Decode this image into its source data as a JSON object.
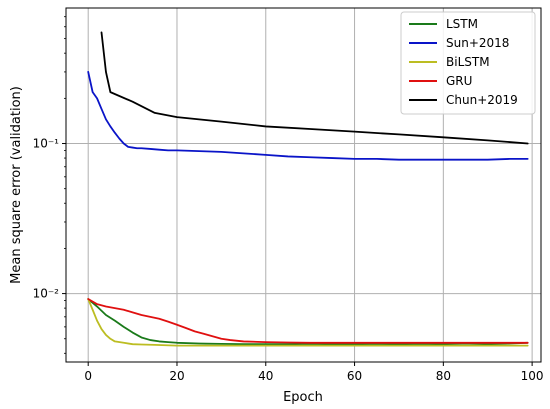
{
  "chart_data": {
    "type": "line",
    "title": "",
    "xlabel": "Epoch",
    "ylabel": "Mean square error (validation)",
    "xlim": [
      -5,
      102
    ],
    "ylim": [
      0.0035,
      0.8
    ],
    "yscale": "log",
    "grid": true,
    "legend_position": "top-right",
    "x_ticks": [
      0,
      20,
      40,
      60,
      80,
      100
    ],
    "x_tick_labels": [
      "0",
      "20",
      "40",
      "60",
      "80",
      "100"
    ],
    "y_ticks": [
      0.01,
      0.1
    ],
    "y_tick_labels": [
      "10⁻²",
      "10⁻¹"
    ],
    "series": [
      {
        "name": "LSTM",
        "color": "#1a7a1a",
        "x": [
          0,
          2,
          4,
          6,
          8,
          10,
          12,
          14,
          16,
          18,
          20,
          25,
          30,
          35,
          40,
          45,
          50,
          55,
          60,
          65,
          70,
          75,
          80,
          85,
          90,
          95,
          99
        ],
        "y": [
          0.0092,
          0.0082,
          0.0072,
          0.0066,
          0.006,
          0.0055,
          0.0051,
          0.0049,
          0.0048,
          0.00475,
          0.0047,
          0.00465,
          0.00462,
          0.0046,
          0.0046,
          0.0046,
          0.00462,
          0.0046,
          0.0046,
          0.00462,
          0.0046,
          0.00462,
          0.0046,
          0.00465,
          0.0046,
          0.00465,
          0.0047
        ]
      },
      {
        "name": "Sun+2018",
        "color": "#0a14c8",
        "x": [
          0,
          1,
          2,
          3,
          4,
          5,
          6,
          7,
          8,
          9,
          10,
          11,
          12,
          14,
          16,
          18,
          20,
          25,
          30,
          35,
          40,
          45,
          50,
          55,
          60,
          65,
          70,
          75,
          80,
          85,
          90,
          95,
          99
        ],
        "y": [
          0.3,
          0.22,
          0.2,
          0.17,
          0.145,
          0.13,
          0.118,
          0.108,
          0.1,
          0.095,
          0.094,
          0.093,
          0.093,
          0.092,
          0.091,
          0.09,
          0.09,
          0.089,
          0.088,
          0.086,
          0.084,
          0.082,
          0.081,
          0.08,
          0.079,
          0.079,
          0.078,
          0.078,
          0.078,
          0.078,
          0.078,
          0.079,
          0.079
        ]
      },
      {
        "name": "BiLSTM",
        "color": "#bcbd22",
        "x": [
          0,
          1,
          2,
          3,
          4,
          5,
          6,
          8,
          10,
          12,
          15,
          20,
          25,
          30,
          35,
          40,
          45,
          50,
          55,
          60,
          65,
          70,
          75,
          80,
          85,
          90,
          95,
          99
        ],
        "y": [
          0.0092,
          0.0078,
          0.0066,
          0.0058,
          0.0053,
          0.005,
          0.0048,
          0.0047,
          0.0046,
          0.00458,
          0.00455,
          0.0045,
          0.0045,
          0.0045,
          0.0045,
          0.0045,
          0.0045,
          0.0045,
          0.0045,
          0.0045,
          0.0045,
          0.0045,
          0.0045,
          0.0045,
          0.0045,
          0.0045,
          0.0045,
          0.0045
        ]
      },
      {
        "name": "GRU",
        "color": "#e01010",
        "x": [
          0,
          2,
          4,
          6,
          8,
          10,
          12,
          14,
          16,
          18,
          20,
          22,
          24,
          26,
          28,
          30,
          32,
          35,
          40,
          45,
          50,
          55,
          60,
          65,
          70,
          75,
          80,
          85,
          90,
          95,
          99
        ],
        "y": [
          0.0092,
          0.0085,
          0.0082,
          0.008,
          0.0078,
          0.0075,
          0.0072,
          0.007,
          0.0068,
          0.0065,
          0.0062,
          0.0059,
          0.0056,
          0.0054,
          0.0052,
          0.005,
          0.0049,
          0.0048,
          0.00475,
          0.00472,
          0.0047,
          0.0047,
          0.0047,
          0.0047,
          0.0047,
          0.0047,
          0.0047,
          0.0047,
          0.0047,
          0.0047,
          0.0047
        ]
      },
      {
        "name": "Chun+2019",
        "color": "#000000",
        "x": [
          3,
          4,
          5,
          10,
          15,
          20,
          30,
          40,
          50,
          60,
          70,
          80,
          90,
          99
        ],
        "y": [
          0.55,
          0.3,
          0.22,
          0.19,
          0.16,
          0.15,
          0.14,
          0.13,
          0.125,
          0.12,
          0.115,
          0.11,
          0.105,
          0.1
        ]
      }
    ]
  },
  "legend": {
    "items": [
      {
        "label": "LSTM",
        "color": "#1a7a1a"
      },
      {
        "label": "Sun+2018",
        "color": "#0a14c8"
      },
      {
        "label": "BiLSTM",
        "color": "#bcbd22"
      },
      {
        "label": "GRU",
        "color": "#e01010"
      },
      {
        "label": "Chun+2019",
        "color": "#000000"
      }
    ]
  }
}
